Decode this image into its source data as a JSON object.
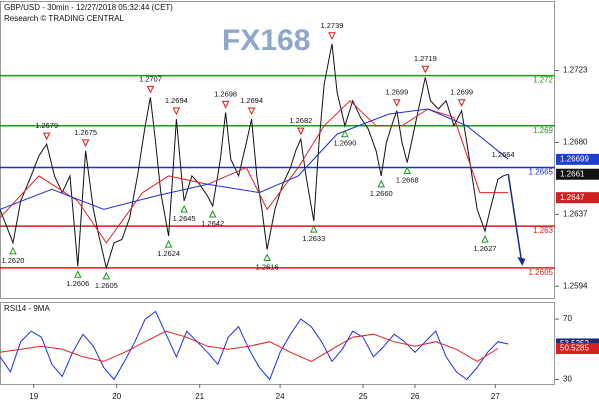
{
  "chart_data": [
    {
      "type": "line",
      "title": "GBP/USD - 30min - 12/27/2018 05:32:44 (CET)",
      "subtitle": "Research © TRADING CENTRAL",
      "logo": "FX168",
      "xlim": [
        0,
        214
      ],
      "ylim": [
        1.2587,
        1.2764
      ],
      "yticks": [
        1.2594,
        1.2637,
        {
          "value": 1.268,
          "label": "1.2680"
        },
        1.2723
      ],
      "series": [
        {
          "color": "#111111",
          "x": [
            0,
            3,
            5,
            8,
            12,
            15,
            18,
            21,
            24,
            27,
            30,
            33,
            36,
            38,
            41,
            44,
            47,
            50,
            53,
            56,
            58,
            60,
            62,
            65,
            67,
            68,
            70,
            71,
            74,
            77,
            80,
            82,
            85,
            87,
            89,
            92,
            95,
            97,
            99,
            101,
            103,
            106,
            109,
            112,
            114,
            116,
            118,
            121,
            123,
            125,
            128,
            130,
            133,
            136,
            139,
            142,
            145,
            147,
            149,
            151,
            153,
            155,
            157,
            160,
            164,
            166,
            169,
            172,
            175,
            178,
            180,
            182,
            184,
            187,
            189,
            192,
            194,
            196
          ],
          "values": [
            1.264,
            1.2628,
            1.262,
            1.2645,
            1.266,
            1.2672,
            1.2679,
            1.266,
            1.265,
            1.266,
            1.2606,
            1.2675,
            1.264,
            1.2625,
            1.2605,
            1.262,
            1.2622,
            1.2635,
            1.266,
            1.269,
            1.2707,
            1.268,
            1.265,
            1.2624,
            1.267,
            1.2694,
            1.266,
            1.2645,
            1.266,
            1.2655,
            1.2648,
            1.2642,
            1.267,
            1.2698,
            1.267,
            1.266,
            1.268,
            1.2694,
            1.266,
            1.264,
            1.2616,
            1.264,
            1.2655,
            1.2665,
            1.2675,
            1.2682,
            1.266,
            1.2633,
            1.268,
            1.2715,
            1.2739,
            1.271,
            1.269,
            1.2705,
            1.2695,
            1.2688,
            1.2675,
            1.266,
            1.268,
            1.269,
            1.2699,
            1.268,
            1.2668,
            1.269,
            1.2719,
            1.2705,
            1.27,
            1.2705,
            1.269,
            1.2699,
            1.268,
            1.266,
            1.264,
            1.2627,
            1.264,
            1.2658,
            1.266,
            1.2661
          ]
        },
        {
          "color": "#e02020",
          "x": [
            0,
            15,
            30,
            41,
            55,
            65,
            80,
            95,
            103,
            115,
            125,
            135,
            145,
            155,
            165,
            175,
            185,
            196
          ],
          "values": [
            1.2635,
            1.266,
            1.2645,
            1.262,
            1.265,
            1.266,
            1.2655,
            1.2665,
            1.264,
            1.2665,
            1.269,
            1.2705,
            1.269,
            1.269,
            1.27,
            1.2695,
            1.265,
            1.265
          ]
        },
        {
          "color": "#2030d0",
          "x": [
            0,
            20,
            40,
            60,
            80,
            100,
            115,
            130,
            150,
            165,
            180,
            196
          ],
          "values": [
            1.264,
            1.2652,
            1.264,
            1.2648,
            1.2655,
            1.265,
            1.266,
            1.2685,
            1.2697,
            1.27,
            1.269,
            1.267
          ]
        }
      ],
      "levels": [
        {
          "value": 1.272,
          "color": "#1a9a1a"
        },
        {
          "value": 1.269,
          "color": "#1a9a1a"
        },
        {
          "value": 1.2665,
          "color": "#1a2ee0"
        },
        {
          "value": 1.263,
          "color": "#e01818"
        },
        {
          "value": 1.2605,
          "color": "#e01818"
        }
      ],
      "highs": {
        "x": [
          18,
          33,
          58,
          68,
          87,
          97,
          116,
          128,
          153,
          164,
          178
        ],
        "values": [
          1.2679,
          1.2675,
          1.2707,
          1.2694,
          1.2698,
          1.2694,
          1.2682,
          1.2739,
          1.2699,
          1.2719,
          1.2699
        ],
        "value_labels": [
          "1.2679",
          "1.2675",
          "1.2707",
          "1.2694",
          "1.2698",
          "1.2694",
          "1.2682",
          "1.2739",
          "1.2699",
          "1.2719",
          "1.2699"
        ]
      },
      "lows": {
        "x": [
          5,
          30,
          41,
          65,
          71,
          82,
          103,
          121,
          133,
          147,
          157,
          187
        ],
        "values": [
          1.262,
          1.2606,
          1.2605,
          1.2624,
          1.2645,
          1.2642,
          1.2616,
          1.2633,
          1.269,
          1.266,
          1.2668,
          1.2627
        ],
        "value_labels": [
          "1.2620",
          "1.2606",
          "1.2605",
          "1.2624",
          "1.2645",
          "1.2642",
          "1.2616",
          "1.2633",
          "1.2690",
          "1.2660",
          "1.2668",
          "1.2627"
        ]
      },
      "note": {
        "x": 194,
        "value": 1.2664
      },
      "price_tags": [
        {
          "value": 1.26699,
          "color": "#1f3fd0"
        },
        {
          "value": 1.2661,
          "color": "#111111"
        },
        {
          "value": 1.2647,
          "color": "#d02020"
        }
      ]
    },
    {
      "type": "line",
      "title": "RSI14 - 9MA",
      "xlim": [
        0,
        214
      ],
      "xticks": [
        {
          "value": 13,
          "label": "19"
        },
        {
          "value": 45,
          "label": "20"
        },
        {
          "value": 77,
          "label": "21"
        },
        {
          "value": 108,
          "label": "24"
        },
        {
          "value": 140,
          "label": "25"
        },
        {
          "value": 160,
          "label": "26"
        },
        {
          "value": 191,
          "label": "27"
        }
      ],
      "ylim": [
        27,
        80
      ],
      "yticks": [
        30,
        70
      ],
      "series": [
        {
          "color": "#1a2ee0",
          "x": [
            0,
            4,
            8,
            12,
            16,
            20,
            24,
            28,
            32,
            36,
            40,
            44,
            48,
            52,
            56,
            60,
            64,
            68,
            72,
            76,
            80,
            84,
            88,
            92,
            96,
            100,
            104,
            108,
            112,
            116,
            120,
            124,
            128,
            132,
            136,
            140,
            144,
            148,
            152,
            156,
            160,
            164,
            168,
            172,
            176,
            180,
            184,
            188,
            192,
            196
          ],
          "values": [
            45,
            35,
            55,
            62,
            58,
            40,
            32,
            48,
            60,
            52,
            38,
            30,
            42,
            55,
            70,
            75,
            60,
            45,
            62,
            55,
            48,
            40,
            58,
            65,
            50,
            38,
            30,
            48,
            60,
            70,
            65,
            55,
            42,
            50,
            62,
            58,
            45,
            52,
            60,
            55,
            48,
            55,
            62,
            45,
            35,
            30,
            38,
            48,
            55,
            53.5
          ]
        },
        {
          "color": "#e02020",
          "x": [
            0,
            8,
            16,
            24,
            32,
            40,
            48,
            56,
            64,
            72,
            80,
            88,
            96,
            104,
            112,
            120,
            128,
            136,
            144,
            152,
            160,
            168,
            176,
            184,
            192
          ],
          "values": [
            48,
            50,
            52,
            50,
            45,
            42,
            48,
            55,
            62,
            58,
            52,
            50,
            52,
            55,
            48,
            42,
            50,
            58,
            60,
            55,
            52,
            55,
            50,
            42,
            50.5
          ]
        }
      ],
      "price_tags": [
        {
          "value": 53.5252,
          "color": "#1a2a7a"
        },
        {
          "value": 50.5285,
          "color": "#d02020"
        }
      ]
    }
  ]
}
